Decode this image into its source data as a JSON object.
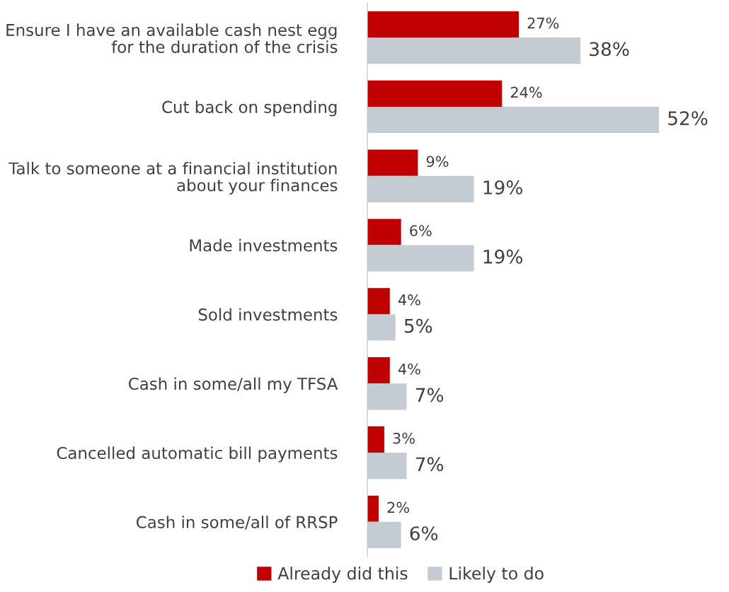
{
  "chart_data": {
    "type": "bar",
    "orientation": "horizontal",
    "categories": [
      "Ensure I have an available cash nest egg for the duration of the crisis",
      "Cut back on spending",
      "Talk to someone at a financial institution about your finances",
      "Made investments",
      "Sold investments",
      "Cash in some/all my TFSA",
      "Cancelled automatic bill payments",
      "Cash in some/all of RRSP"
    ],
    "series": [
      {
        "name": "Already did this",
        "color": "#c00000",
        "values": [
          27,
          24,
          9,
          6,
          4,
          4,
          3,
          2
        ],
        "value_labels": [
          "27%",
          "24%",
          "9%",
          "6%",
          "4%",
          "4%",
          "3%",
          "2%"
        ]
      },
      {
        "name": "Likely to do",
        "color": "#c5cbd3",
        "values": [
          38,
          52,
          19,
          19,
          5,
          7,
          7,
          6
        ],
        "value_labels": [
          "38%",
          "52%",
          "19%",
          "19%",
          "5%",
          "7%",
          "7%",
          "6%"
        ]
      }
    ],
    "legend": "bottom",
    "grid": false
  }
}
